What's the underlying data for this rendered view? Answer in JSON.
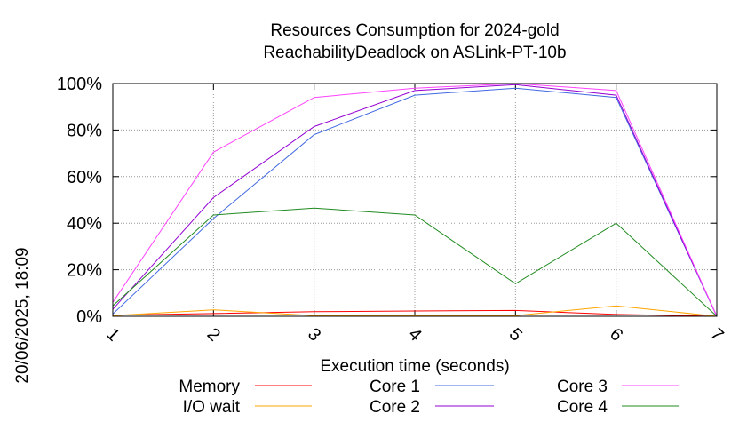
{
  "side_label": "20/06/2025, 18:09",
  "chart_data": {
    "type": "line",
    "title": "Resources Consumption for 2024-gold",
    "subtitle": "ReachabilityDeadlock on ASLink-PT-10b",
    "xlabel": "Execution time (seconds)",
    "ylabel": "",
    "x": [
      1,
      2,
      3,
      4,
      5,
      6,
      7
    ],
    "xlim": [
      1,
      7
    ],
    "ylim": [
      0,
      100
    ],
    "yticks": [
      "0%",
      "20%",
      "40%",
      "60%",
      "80%",
      "100%"
    ],
    "xticks": [
      "1",
      "2",
      "3",
      "4",
      "5",
      "6",
      "7"
    ],
    "grid": true,
    "legend_position": "bottom",
    "series": [
      {
        "name": "Memory",
        "color": "#ff0000",
        "values": [
          0.5,
          1.2,
          2.0,
          2.3,
          2.5,
          0.8,
          0
        ]
      },
      {
        "name": "I/O wait",
        "color": "#ffa500",
        "values": [
          0.3,
          2.8,
          0.3,
          0.3,
          0.3,
          4.5,
          0
        ]
      },
      {
        "name": "Core 1",
        "color": "#4169e1",
        "values": [
          1.0,
          42,
          78,
          95,
          98,
          94,
          0
        ]
      },
      {
        "name": "Core 2",
        "color": "#9400d3",
        "values": [
          3.0,
          51,
          81.5,
          97,
          99.5,
          95,
          0
        ]
      },
      {
        "name": "Core 3",
        "color": "#ff44ff",
        "values": [
          6.0,
          70.5,
          94,
          98,
          100,
          97,
          0
        ]
      },
      {
        "name": "Core 4",
        "color": "#228b22",
        "values": [
          4.5,
          43.5,
          46.5,
          43.5,
          14,
          40,
          0
        ]
      }
    ]
  }
}
